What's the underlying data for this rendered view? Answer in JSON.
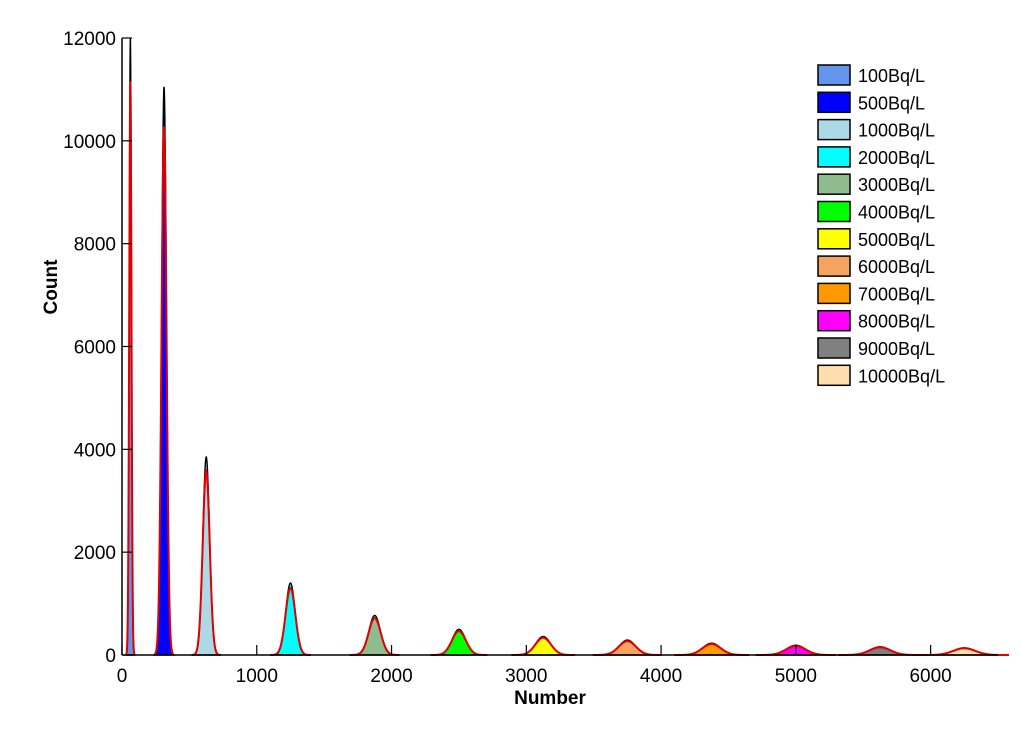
{
  "chart_data": {
    "type": "area",
    "xlabel": "Number",
    "ylabel": "Count",
    "xlim": [
      0,
      6500
    ],
    "ylim": [
      0,
      12000
    ],
    "x_ticks": [
      0,
      1000,
      2000,
      3000,
      4000,
      5000,
      6000
    ],
    "y_ticks": [
      0,
      2000,
      4000,
      6000,
      8000,
      10000,
      12000
    ],
    "grid": false,
    "legend_position": "top-right",
    "fit_line_color": "#e00000",
    "series": [
      {
        "name": "100Bq/L",
        "color": "#6495ed",
        "center": 62,
        "peak": 12000,
        "sigma": 8
      },
      {
        "name": "500Bq/L",
        "color": "#0000ff",
        "center": 312,
        "peak": 11050,
        "sigma": 18
      },
      {
        "name": "1000Bq/L",
        "color": "#add8e6",
        "center": 625,
        "peak": 3850,
        "sigma": 25
      },
      {
        "name": "2000Bq/L",
        "color": "#00ffff",
        "center": 1250,
        "peak": 1400,
        "sigma": 35
      },
      {
        "name": "3000Bq/L",
        "color": "#8fbc8f",
        "center": 1875,
        "peak": 770,
        "sigma": 43
      },
      {
        "name": "4000Bq/L",
        "color": "#00ff00",
        "center": 2500,
        "peak": 500,
        "sigma": 50
      },
      {
        "name": "5000Bq/L",
        "color": "#ffff00",
        "center": 3125,
        "peak": 360,
        "sigma": 56
      },
      {
        "name": "6000Bq/L",
        "color": "#f4a460",
        "center": 3750,
        "peak": 290,
        "sigma": 61
      },
      {
        "name": "7000Bq/L",
        "color": "#ff9900",
        "center": 4375,
        "peak": 230,
        "sigma": 66
      },
      {
        "name": "8000Bq/L",
        "color": "#ff00ff",
        "center": 5000,
        "peak": 190,
        "sigma": 71
      },
      {
        "name": "9000Bq/L",
        "color": "#808080",
        "center": 5625,
        "peak": 160,
        "sigma": 75
      },
      {
        "name": "10000Bq/L",
        "color": "#ffdead",
        "center": 6250,
        "peak": 140,
        "sigma": 79
      }
    ]
  }
}
